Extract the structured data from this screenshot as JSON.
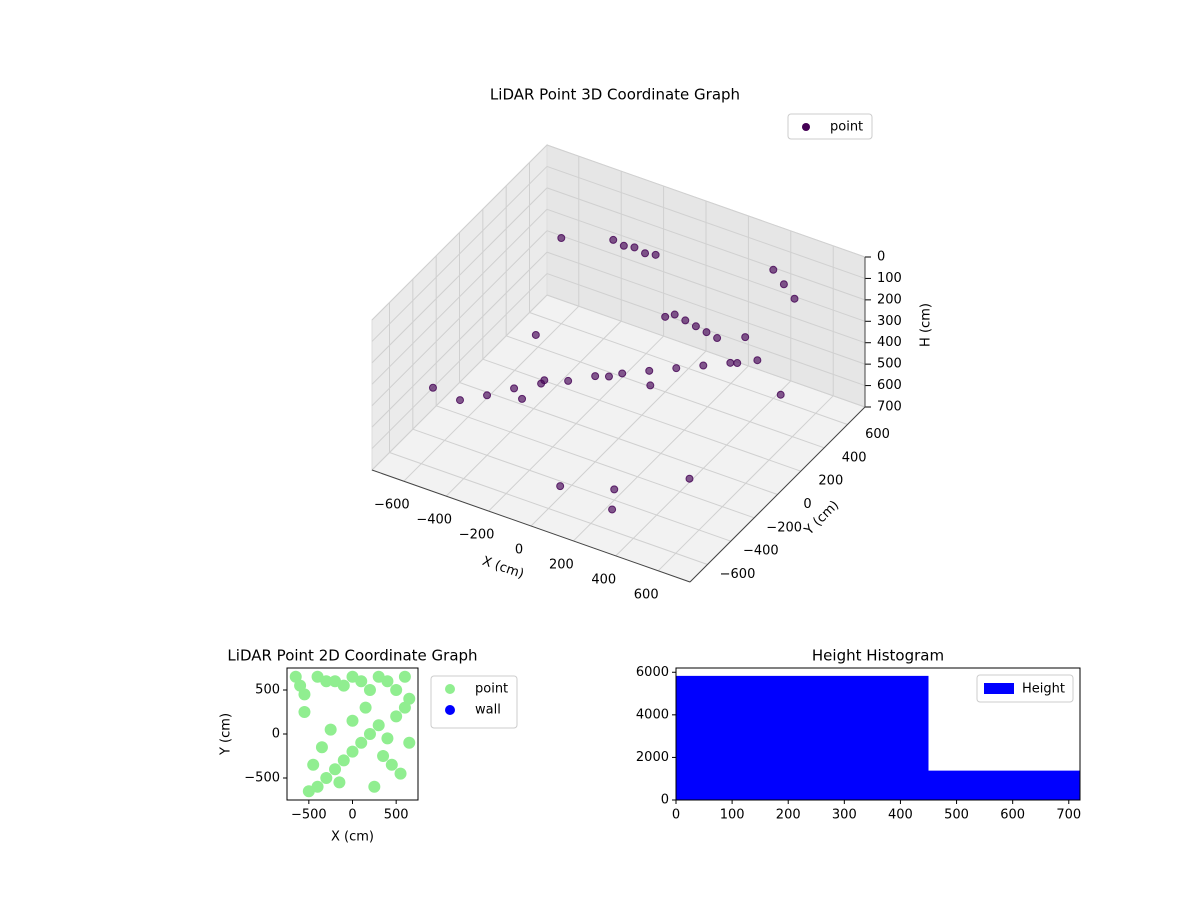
{
  "chart_data": [
    {
      "type": "scatter3d",
      "title": "LiDAR Point 3D Coordinate Graph",
      "xlabel": "X (cm)",
      "ylabel": "Y (cm)",
      "zlabel": "H (cm)",
      "xlim": [
        -750,
        750
      ],
      "ylim": [
        -750,
        750
      ],
      "zlim": [
        0,
        700
      ],
      "z_inverted": true,
      "xticks": [
        {
          "value": -600,
          "label": "−600"
        },
        {
          "value": -400,
          "label": "−400"
        },
        {
          "value": -200,
          "label": "−200"
        },
        0,
        200,
        400,
        600
      ],
      "yticks": [
        {
          "value": -600,
          "label": "−600"
        },
        {
          "value": -400,
          "label": "−400"
        },
        {
          "value": -200,
          "label": "−200"
        },
        0,
        200,
        400,
        600
      ],
      "zticks": [
        0,
        100,
        200,
        300,
        400,
        500,
        600,
        700
      ],
      "legend": "upper right",
      "series": [
        {
          "name": "point",
          "color": "#440154",
          "x": [
            -600,
            -500,
            -400,
            -300,
            -200,
            -100,
            0,
            100,
            200,
            300,
            400,
            500,
            600,
            -300,
            -250,
            -200,
            -150,
            -100,
            100,
            150,
            200,
            250,
            300,
            400,
            450,
            500,
            -500,
            -400,
            0,
            200,
            500,
            600,
            -600,
            300,
            -100,
            0,
            450,
            350,
            150,
            -350
          ],
          "y": [
            -500,
            -450,
            -400,
            -350,
            -300,
            -250,
            -200,
            -150,
            -100,
            -50,
            0,
            50,
            100,
            500,
            500,
            500,
            500,
            500,
            300,
            300,
            300,
            300,
            300,
            600,
            600,
            600,
            200,
            -100,
            400,
            -400,
            -300,
            300,
            600,
            -600,
            100,
            -500,
            200,
            450,
            0,
            0
          ],
          "z": [
            400,
            450,
            420,
            380,
            350,
            330,
            300,
            280,
            260,
            240,
            220,
            200,
            180,
            150,
            160,
            150,
            160,
            150,
            250,
            260,
            270,
            280,
            290,
            100,
            150,
            200,
            500,
            600,
            350,
            650,
            550,
            450,
            300,
            600,
            500,
            650,
            300,
            350,
            400,
            550
          ]
        }
      ]
    },
    {
      "type": "scatter",
      "title": "LiDAR Point 2D Coordinate Graph",
      "xlabel": "X (cm)",
      "ylabel": "Y (cm)",
      "xlim": [
        -750,
        750
      ],
      "ylim": [
        -750,
        750
      ],
      "xticks": [
        {
          "value": -500,
          "label": "−500"
        },
        0,
        500
      ],
      "yticks": [
        {
          "value": -500,
          "label": "−500"
        },
        0,
        500
      ],
      "legend": "outside right",
      "series": [
        {
          "name": "point",
          "color": "#90ee90",
          "x": [
            -650,
            -600,
            -550,
            -400,
            -300,
            -200,
            -100,
            0,
            100,
            200,
            300,
            400,
            500,
            600,
            650,
            -500,
            -400,
            -300,
            -200,
            -100,
            0,
            100,
            200,
            300,
            400,
            500,
            600,
            -450,
            -350,
            -250,
            0,
            150,
            350,
            550,
            -150,
            250,
            450,
            -550,
            650
          ],
          "y": [
            650,
            550,
            450,
            650,
            600,
            600,
            550,
            650,
            600,
            500,
            650,
            600,
            500,
            650,
            400,
            -650,
            -600,
            -500,
            -400,
            -300,
            -200,
            -100,
            0,
            100,
            -50,
            200,
            300,
            -350,
            -150,
            50,
            150,
            300,
            -250,
            -450,
            -550,
            -600,
            -350,
            250,
            -100
          ]
        },
        {
          "name": "wall",
          "color": "#0000ff",
          "x": [],
          "y": []
        }
      ]
    },
    {
      "type": "histogram",
      "title": "Height Histogram",
      "bins": [
        0,
        450,
        720
      ],
      "values": [
        5830,
        1380
      ],
      "color": "#0000ff",
      "xlim": [
        0,
        720
      ],
      "ylim": [
        0,
        6200
      ],
      "xticks": [
        0,
        100,
        200,
        300,
        400,
        500,
        600,
        700
      ],
      "yticks": [
        0,
        2000,
        4000,
        6000
      ],
      "legend": "upper right",
      "series_name": "Height"
    }
  ]
}
